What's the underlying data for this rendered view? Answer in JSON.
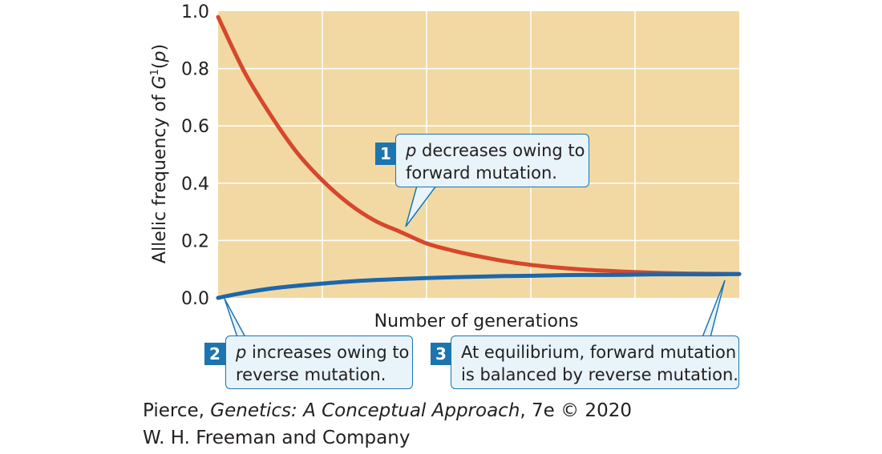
{
  "chart_data": {
    "type": "line",
    "xlabel": "Number of generations",
    "ylabel_prefix": "Allelic frequency of ",
    "ylabel_gene": "G",
    "ylabel_sup": "1",
    "ylabel_var": "p",
    "ylim": [
      0,
      1.0
    ],
    "yticks": [
      "0.0",
      "0.2",
      "0.4",
      "0.6",
      "0.8",
      "1.0"
    ],
    "xlim": [
      0,
      5
    ],
    "grid": true,
    "x": [
      0,
      0.25,
      0.5,
      0.75,
      1,
      1.25,
      1.5,
      1.75,
      2,
      2.25,
      2.5,
      2.75,
      3,
      3.25,
      3.5,
      3.75,
      4,
      4.25,
      4.5,
      4.75,
      5
    ],
    "series": [
      {
        "name": "",
        "color": "#d6472c",
        "values": [
          0.98,
          0.79,
          0.64,
          0.51,
          0.41,
          0.33,
          0.27,
          0.23,
          0.19,
          0.165,
          0.145,
          0.128,
          0.115,
          0.106,
          0.099,
          0.094,
          0.09,
          0.087,
          0.085,
          0.084,
          0.083
        ]
      },
      {
        "name": "",
        "color": "#1a67ad",
        "values": [
          0.0,
          0.018,
          0.032,
          0.042,
          0.05,
          0.057,
          0.062,
          0.066,
          0.069,
          0.072,
          0.074,
          0.076,
          0.077,
          0.079,
          0.08,
          0.08,
          0.081,
          0.082,
          0.082,
          0.082,
          0.083
        ]
      }
    ]
  },
  "callouts": [
    {
      "number": "1",
      "var": "p",
      "line1": " decreases owing to",
      "line2": "forward mutation."
    },
    {
      "number": "2",
      "var": "p",
      "line1": " increases owing to",
      "line2": "reverse mutation."
    },
    {
      "number": "3",
      "line1": "At equilibrium, forward mutation",
      "line2": "is balanced by reverse mutation."
    }
  ],
  "credit": {
    "author": "Pierce, ",
    "book": "Genetics: A Conceptual Approach",
    "edition": ", 7e © 2020",
    "publisher": "W. H. Freeman and Company"
  },
  "colors": {
    "plot_background": "#f2d9a3",
    "grid": "#ffffff",
    "callout_border": "#1c75b0",
    "callout_fill": "#e8f3fa"
  }
}
